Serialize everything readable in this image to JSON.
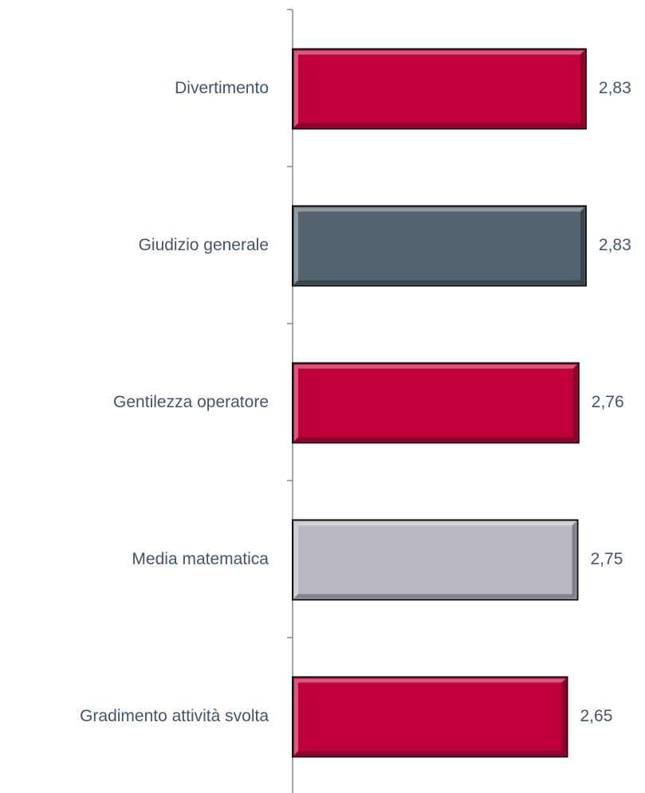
{
  "chart_data": {
    "type": "bar",
    "orientation": "horizontal",
    "categories": [
      "Divertimento",
      "Giudizio generale",
      "Gentilezza operatore",
      "Media matematica",
      "Gradimento attività svolta"
    ],
    "values": [
      2.83,
      2.83,
      2.76,
      2.75,
      2.65
    ],
    "value_labels": [
      "2,83",
      "2,83",
      "2,76",
      "2,75",
      "2,65"
    ],
    "colors": [
      "#c0003a",
      "#566470",
      "#c0003a",
      "#b9b9c3",
      "#c0003a"
    ],
    "xlim": [
      0,
      3
    ]
  }
}
